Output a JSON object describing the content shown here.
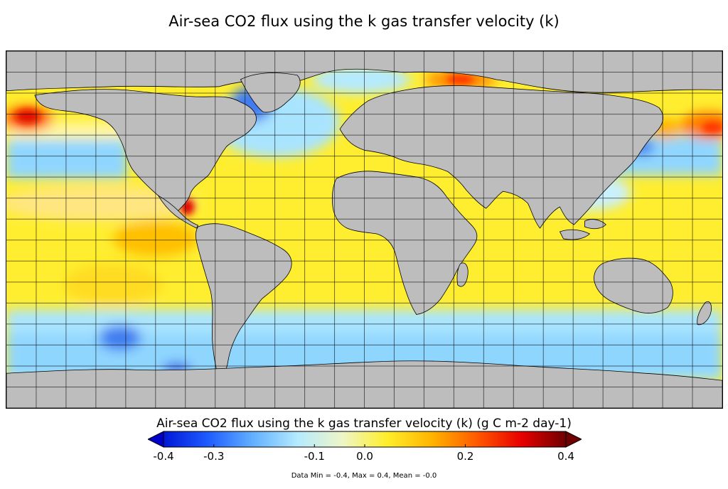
{
  "title": "Air-sea CO2 flux using the k gas transfer velocity (k)",
  "colorbar": {
    "title": "Air-sea CO2 flux using the k gas transfer velocity (k) (g C m-2 day-1)",
    "min": -0.4,
    "max": 0.4,
    "ticks": [
      {
        "value": -0.4,
        "label": "-0.4"
      },
      {
        "value": -0.3,
        "label": "-0.3"
      },
      {
        "value": -0.1,
        "label": "-0.1"
      },
      {
        "value": 0.0,
        "label": "0.0"
      },
      {
        "value": 0.2,
        "label": "0.2"
      },
      {
        "value": 0.4,
        "label": "0.4"
      }
    ],
    "colors": [
      "#0018d6",
      "#1f5cff",
      "#62b0ff",
      "#b5eaff",
      "#eef6c8",
      "#ffee2a",
      "#ffb400",
      "#ff5a00",
      "#e80000",
      "#6e0000"
    ],
    "under_color": "#0000c8",
    "over_color": "#6e0000"
  },
  "stats": "Data Min = -0.4, Max = 0.4, Mean = -0.0",
  "map": {
    "land_color": "#bdbdbd",
    "grid": true,
    "grid_lon_step_deg": 15,
    "grid_lat_step_deg": 10,
    "lat_range": [
      -80,
      90
    ],
    "lon_range": [
      -180,
      180
    ]
  }
}
